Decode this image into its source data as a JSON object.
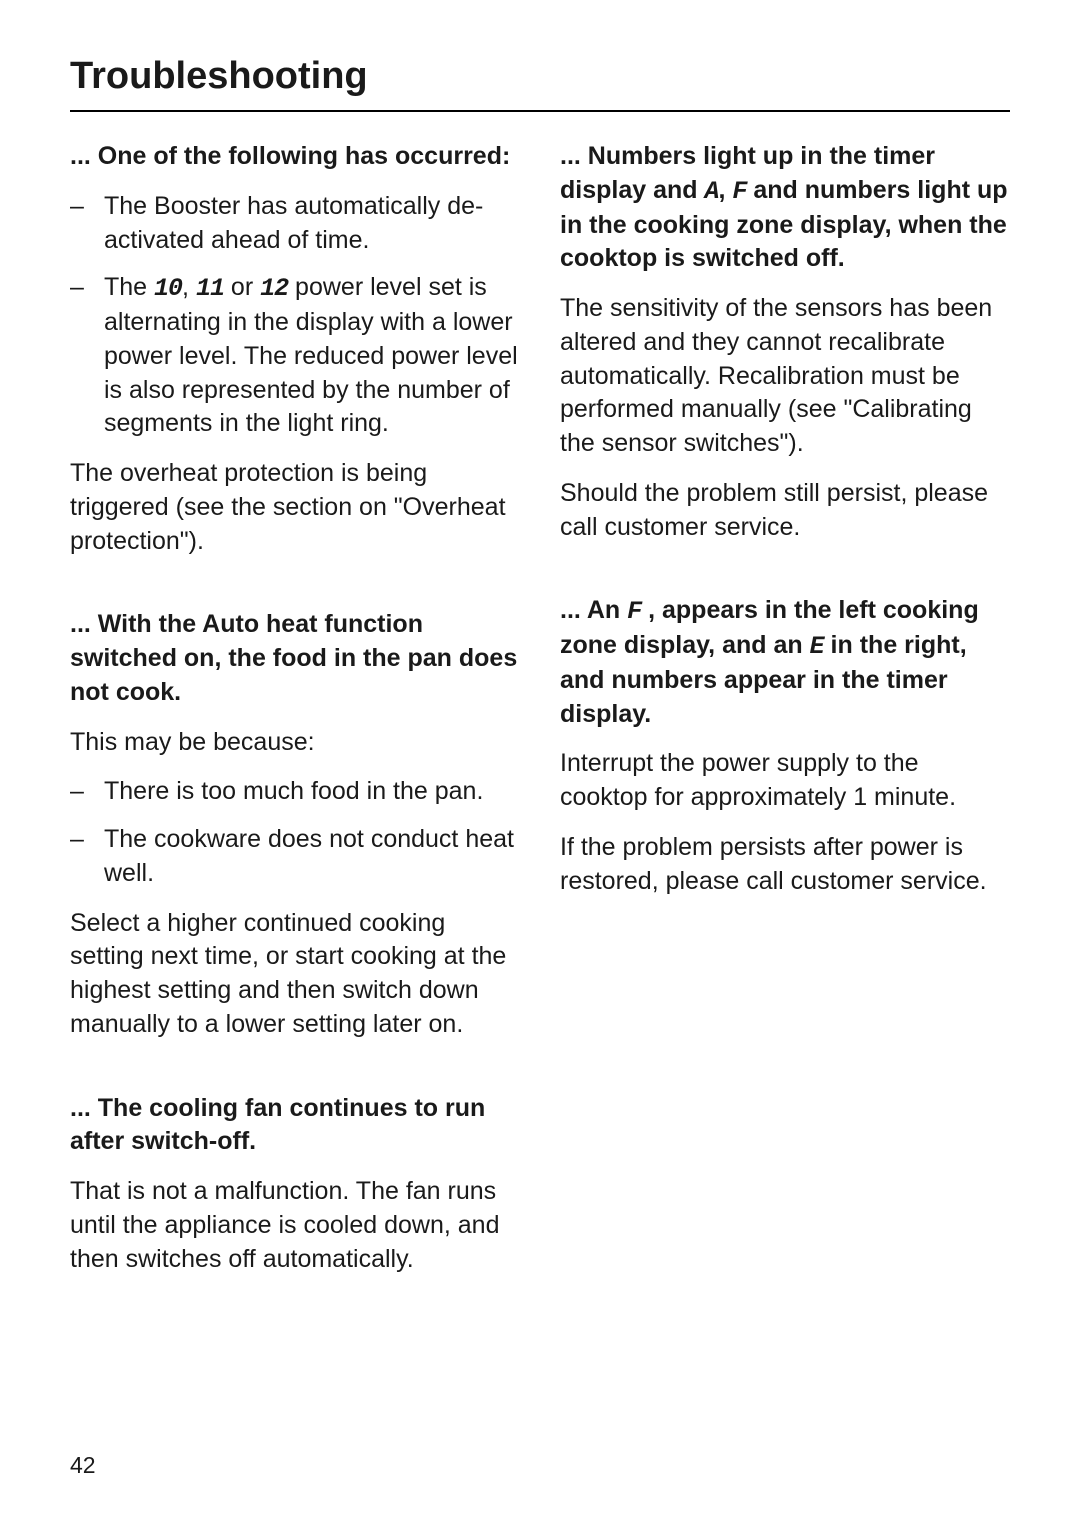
{
  "header": "Troubleshooting",
  "page_number": "42",
  "left": {
    "s1": {
      "title": "... One of the following has occurred:",
      "b1": "The Booster has automatically de-activated ahead of time.",
      "b2_pre": "The ",
      "b2_10": "10",
      "b2_sep1": ", ",
      "b2_11": "11",
      "b2_sep2": " or ",
      "b2_12": "12",
      "b2_post": " power level set is alternating in the display with a lower power level. The reduced power level is also represented by the number of segments in the light ring.",
      "p1": "The overheat protection is being triggered (see the section on \"Overheat protection\")."
    },
    "s2": {
      "title": "... With the Auto heat function switched on, the food in the pan does not cook.",
      "p1": "This may be because:",
      "b1": "There is too much food in the pan.",
      "b2": "The cookware does not conduct heat well.",
      "p2": "Select a higher continued cooking setting next time, or start cooking at the highest setting and then switch down manually to a lower setting later on."
    },
    "s3": {
      "title": "... The cooling fan continues to run after switch-off.",
      "p1": "That is not a malfunction. The fan runs until the appliance is cooled down, and then switches off automatically."
    }
  },
  "right": {
    "s1": {
      "t_pre": "... Numbers light up in the timer display and ",
      "t_A": "A",
      "t_sep": ", ",
      "t_F": "F",
      "t_post": " and numbers light up in the cooking zone display, when the cooktop is switched off.",
      "p1": "The sensitivity of the sensors has been altered and they cannot recalibrate automatically. Recalibration must be performed manually (see \"Calibrating the sensor switches\").",
      "p2": "Should the problem still persist, please call customer service."
    },
    "s2": {
      "t_pre": "... An ",
      "t_F": "F",
      "t_mid": " , appears in the left cooking zone display, and an ",
      "t_E": "E",
      "t_post": " in the right, and numbers appear in the timer display.",
      "p1": "Interrupt the power supply to the cooktop for approximately 1 minute.",
      "p2": "If the problem persists after power is restored, please call customer service."
    }
  }
}
